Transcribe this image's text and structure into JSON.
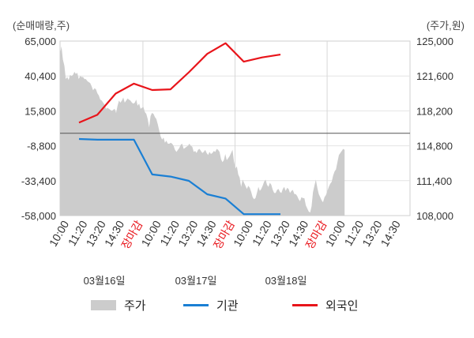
{
  "chart_data": {
    "type": "line",
    "left_unit": "(순매매량,주)",
    "right_unit": "(주가,원)",
    "left_ticks": [
      "65,000",
      "40,400",
      "15,800",
      "-8,800",
      "-33,400",
      "-58,000"
    ],
    "left_values": [
      65000,
      40400,
      15800,
      -8800,
      -33400,
      -58000
    ],
    "right_ticks": [
      "125,000",
      "121,600",
      "118,200",
      "114,800",
      "111,400",
      "108,000"
    ],
    "right_values": [
      125000,
      121600,
      118200,
      114800,
      111400,
      108000
    ],
    "x_tick_labels": [
      "10:00",
      "11:20",
      "13:20",
      "14:30",
      "장마감",
      "10:00",
      "11:20",
      "13:20",
      "14:30",
      "장마감",
      "10:00",
      "11:20",
      "13:20",
      "14:30",
      "장마감",
      "10:00",
      "11:20",
      "13:20",
      "14:30"
    ],
    "x_tick_highlight": [
      false,
      false,
      false,
      false,
      true,
      false,
      false,
      false,
      false,
      true,
      false,
      false,
      false,
      false,
      true,
      false,
      false,
      false,
      false
    ],
    "day_labels": [
      "03월16일",
      "03월17일",
      "03월18일"
    ],
    "series": [
      {
        "name": "기관",
        "color": "#1a7fd4",
        "points": [
          [
            0,
            -4000
          ],
          [
            1,
            -4500
          ],
          [
            2,
            -4500
          ],
          [
            3,
            -4500
          ],
          [
            4,
            -29000
          ],
          [
            5,
            -30500
          ],
          [
            6,
            -33500
          ],
          [
            7,
            -43000
          ],
          [
            8,
            -46000
          ],
          [
            9,
            -57000
          ],
          [
            10,
            -57000
          ],
          [
            11,
            -57000
          ]
        ]
      },
      {
        "name": "외국인",
        "color": "#e8141a",
        "points": [
          [
            0,
            7500
          ],
          [
            1,
            13000
          ],
          [
            2,
            28000
          ],
          [
            3,
            35000
          ],
          [
            4,
            30500
          ],
          [
            5,
            31000
          ],
          [
            6,
            43000
          ],
          [
            7,
            56000
          ],
          [
            8,
            63500
          ],
          [
            9,
            50500
          ],
          [
            10,
            53500
          ],
          [
            11,
            55500
          ]
        ]
      }
    ],
    "price_series": {
      "name": "주가",
      "color": "#cccccc",
      "values": [
        123800,
        124500,
        123200,
        122600,
        121300,
        121500,
        121200,
        121700,
        121600,
        121700,
        122000,
        121800,
        121900,
        121300,
        121600,
        121500,
        121500,
        121300,
        121300,
        121100,
        121000,
        120900,
        120600,
        120200,
        120400,
        120300,
        119900,
        119700,
        119300,
        119200,
        119000,
        118800,
        118400,
        118500,
        118400,
        118300,
        118200,
        118300,
        118400,
        118000,
        118700,
        119200,
        119000,
        119200,
        119500,
        119000,
        119200,
        119400,
        119300,
        119200,
        119000,
        118900,
        119000,
        119300,
        118700,
        118900,
        118400,
        118500,
        118600,
        118100,
        117900,
        117400,
        116600,
        117700,
        118000,
        117900,
        117600,
        117400,
        116900,
        116300,
        115700,
        115400,
        115600,
        115100,
        115300,
        115000,
        115000,
        115100,
        115000,
        114800,
        114400,
        114200,
        114400,
        114600,
        114900,
        115000,
        114500,
        114600,
        114700,
        114800,
        115000,
        114800,
        114700,
        114200,
        114300,
        114100,
        114400,
        114500,
        114300,
        114100,
        114200,
        114400,
        114100,
        113900,
        114200,
        114000,
        114100,
        114300,
        114200,
        114500,
        114400,
        114200,
        113500,
        113200,
        113400,
        114000,
        113400,
        113600,
        113800,
        114100,
        114400,
        113300,
        112600,
        112800,
        112000,
        111700,
        110800,
        111500,
        111200,
        110900,
        110600,
        110900,
        110700,
        110300,
        109800,
        109600,
        109700,
        110200,
        110800,
        110400,
        110600,
        110900,
        111300,
        111500,
        111000,
        110800,
        111200,
        111000,
        110500,
        110200,
        110200,
        110500,
        110600,
        110300,
        110200,
        110600,
        110800,
        110400,
        110700,
        110600,
        110200,
        110400,
        110500,
        110100,
        110100,
        109900,
        109600,
        109400,
        109800,
        109700,
        109700,
        109000,
        108700,
        108400,
        108300,
        108900,
        110300,
        110900,
        111500,
        110700,
        110100,
        109800,
        109500,
        109300,
        109800,
        110000,
        110400,
        110800,
        111100,
        111300,
        111900,
        112300,
        112500,
        113200,
        113900,
        114100,
        114300,
        114500,
        114400
      ]
    },
    "legend": [
      {
        "label": "주가",
        "kind": "area",
        "color": "#cccccc"
      },
      {
        "label": "기관",
        "kind": "line",
        "color": "#1a7fd4"
      },
      {
        "label": "외국인",
        "kind": "line",
        "color": "#e8141a"
      }
    ],
    "grid": true
  }
}
